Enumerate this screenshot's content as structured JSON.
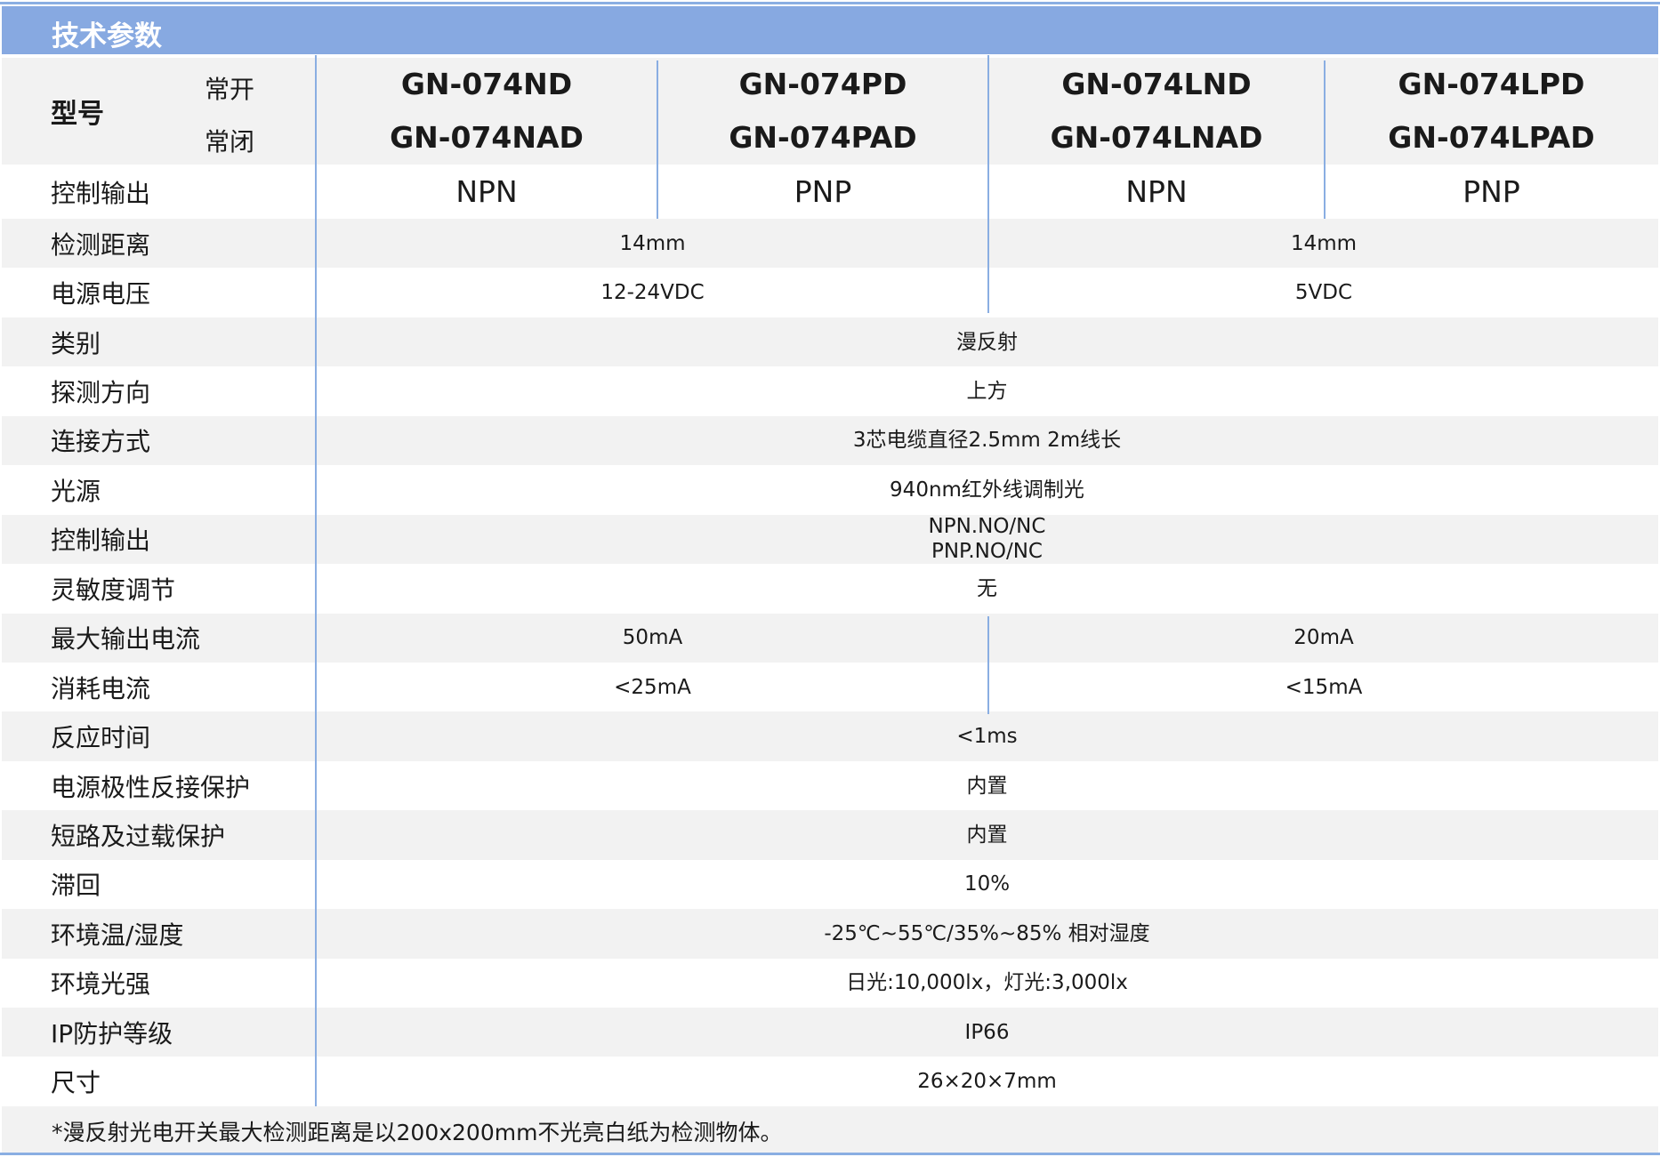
{
  "title": "技术参数",
  "model_label": "型号",
  "no_label": "常开",
  "nc_label": "常闭",
  "models": [
    {
      "no": "GN-074ND",
      "nc": "GN-074NAD",
      "output": "NPN"
    },
    {
      "no": "GN-074PD",
      "nc": "GN-074PAD",
      "output": "PNP"
    },
    {
      "no": "GN-074LND",
      "nc": "GN-074LNAD",
      "output": "NPN"
    },
    {
      "no": "GN-074LPD",
      "nc": "GN-074LPAD",
      "output": "PNP"
    }
  ],
  "output_label": "控制输出",
  "rows": [
    {
      "label": "检测距离",
      "values": [
        "14mm",
        "14mm"
      ]
    },
    {
      "label": "电源电压",
      "values": [
        "12-24VDC",
        "5VDC"
      ]
    },
    {
      "label": "类别",
      "values": [
        "漫反射"
      ]
    },
    {
      "label": "探测方向",
      "values": [
        "上方"
      ]
    },
    {
      "label": "连接方式",
      "values": [
        "3芯电缆直径2.5mm 2m线长"
      ]
    },
    {
      "label": "光源",
      "values": [
        "940nm红外线调制光"
      ]
    },
    {
      "label": "控制输出",
      "values": [
        "NPN.NO/NC\nPNP.NO/NC"
      ]
    },
    {
      "label": "灵敏度调节",
      "values": [
        "无"
      ]
    },
    {
      "label": "最大输出电流",
      "values": [
        "50mA",
        "20mA"
      ]
    },
    {
      "label": "消耗电流",
      "values": [
        "<25mA",
        "<15mA"
      ]
    },
    {
      "label": "反应时间",
      "values": [
        "<1ms"
      ]
    },
    {
      "label": "电源极性反接保护",
      "values": [
        "内置"
      ]
    },
    {
      "label": "短路及过载保护",
      "values": [
        "内置"
      ]
    },
    {
      "label": "滞回",
      "values": [
        "10%"
      ]
    },
    {
      "label": "环境温/湿度",
      "values": [
        "-25℃~55℃/35%~85% 相对湿度"
      ]
    },
    {
      "label": "环境光强",
      "values": [
        "日光:10,000lx，灯光:3,000lx"
      ]
    },
    {
      "label": "IP防护等级",
      "values": [
        "IP66"
      ]
    },
    {
      "label": "尺寸",
      "values": [
        "26×20×7mm"
      ]
    }
  ],
  "footnote": "*漫反射光电开关最大检测距离是以200x200mm不光亮白纸为检测物体。",
  "colors": {
    "accent": "#87a9e1",
    "line": "#8aaee2",
    "stripe": "#f2f2f2"
  }
}
